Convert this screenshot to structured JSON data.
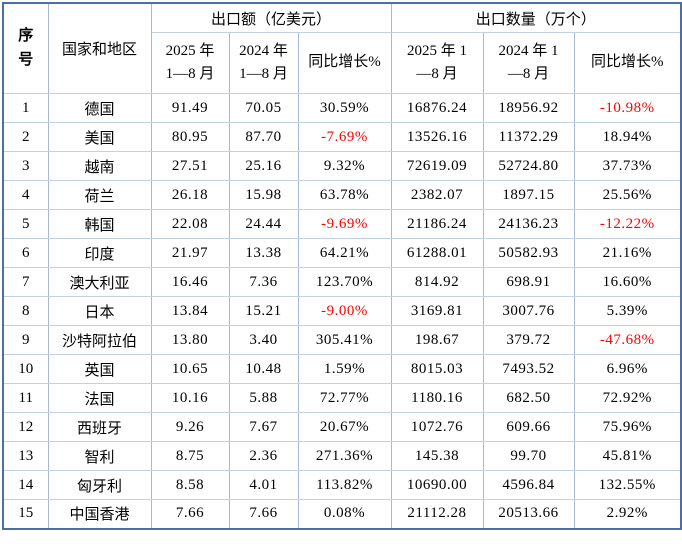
{
  "colors": {
    "negative_value": "#ff0000",
    "outer_border": "#4a6fa5",
    "inner_border_vertical": "#a5b8d4",
    "inner_border_horizontal": "#c2d1e0",
    "text": "#000000",
    "background": "#ffffff"
  },
  "table": {
    "header": {
      "serial": "序\n号",
      "country": "国家和地区",
      "group_export_value": "出口额（亿美元）",
      "group_export_qty": "出口数量（万个）",
      "value_2025": "2025 年\n1—8 月",
      "value_2024": "2024 年\n1—8 月",
      "value_yoy": "同比增长%",
      "qty_2025": "2025 年 1\n—8 月",
      "qty_2024": "2024 年 1\n—8 月",
      "qty_yoy": "同比增长%"
    },
    "rows": [
      {
        "sn": "1",
        "country": "德国",
        "v2025": "91.49",
        "v2024": "70.05",
        "vyoy": "30.59%",
        "q2025": "16876.24",
        "q2024": "18956.92",
        "qyoy": "-10.98%"
      },
      {
        "sn": "2",
        "country": "美国",
        "v2025": "80.95",
        "v2024": "87.70",
        "vyoy": "-7.69%",
        "q2025": "13526.16",
        "q2024": "11372.29",
        "qyoy": "18.94%"
      },
      {
        "sn": "3",
        "country": "越南",
        "v2025": "27.51",
        "v2024": "25.16",
        "vyoy": "9.32%",
        "q2025": "72619.09",
        "q2024": "52724.80",
        "qyoy": "37.73%"
      },
      {
        "sn": "4",
        "country": "荷兰",
        "v2025": "26.18",
        "v2024": "15.98",
        "vyoy": "63.78%",
        "q2025": "2382.07",
        "q2024": "1897.15",
        "qyoy": "25.56%"
      },
      {
        "sn": "5",
        "country": "韩国",
        "v2025": "22.08",
        "v2024": "24.44",
        "vyoy": "-9.69%",
        "q2025": "21186.24",
        "q2024": "24136.23",
        "qyoy": "-12.22%"
      },
      {
        "sn": "6",
        "country": "印度",
        "v2025": "21.97",
        "v2024": "13.38",
        "vyoy": "64.21%",
        "q2025": "61288.01",
        "q2024": "50582.93",
        "qyoy": "21.16%"
      },
      {
        "sn": "7",
        "country": "澳大利亚",
        "v2025": "16.46",
        "v2024": "7.36",
        "vyoy": "123.70%",
        "q2025": "814.92",
        "q2024": "698.91",
        "qyoy": "16.60%"
      },
      {
        "sn": "8",
        "country": "日本",
        "v2025": "13.84",
        "v2024": "15.21",
        "vyoy": "-9.00%",
        "q2025": "3169.81",
        "q2024": "3007.76",
        "qyoy": "5.39%"
      },
      {
        "sn": "9",
        "country": "沙特阿拉伯",
        "v2025": "13.80",
        "v2024": "3.40",
        "vyoy": "305.41%",
        "q2025": "198.67",
        "q2024": "379.72",
        "qyoy": "-47.68%"
      },
      {
        "sn": "10",
        "country": "英国",
        "v2025": "10.65",
        "v2024": "10.48",
        "vyoy": "1.59%",
        "q2025": "8015.03",
        "q2024": "7493.52",
        "qyoy": "6.96%"
      },
      {
        "sn": "11",
        "country": "法国",
        "v2025": "10.16",
        "v2024": "5.88",
        "vyoy": "72.77%",
        "q2025": "1180.16",
        "q2024": "682.50",
        "qyoy": "72.92%"
      },
      {
        "sn": "12",
        "country": "西班牙",
        "v2025": "9.26",
        "v2024": "7.67",
        "vyoy": "20.67%",
        "q2025": "1072.76",
        "q2024": "609.66",
        "qyoy": "75.96%"
      },
      {
        "sn": "13",
        "country": "智利",
        "v2025": "8.75",
        "v2024": "2.36",
        "vyoy": "271.36%",
        "q2025": "145.38",
        "q2024": "99.70",
        "qyoy": "45.81%"
      },
      {
        "sn": "14",
        "country": "匈牙利",
        "v2025": "8.58",
        "v2024": "4.01",
        "vyoy": "113.82%",
        "q2025": "10690.00",
        "q2024": "4596.84",
        "qyoy": "132.55%"
      },
      {
        "sn": "15",
        "country": "中国香港",
        "v2025": "7.66",
        "v2024": "7.66",
        "vyoy": "0.08%",
        "q2025": "21112.28",
        "q2024": "20513.66",
        "qyoy": "2.92%"
      }
    ]
  }
}
